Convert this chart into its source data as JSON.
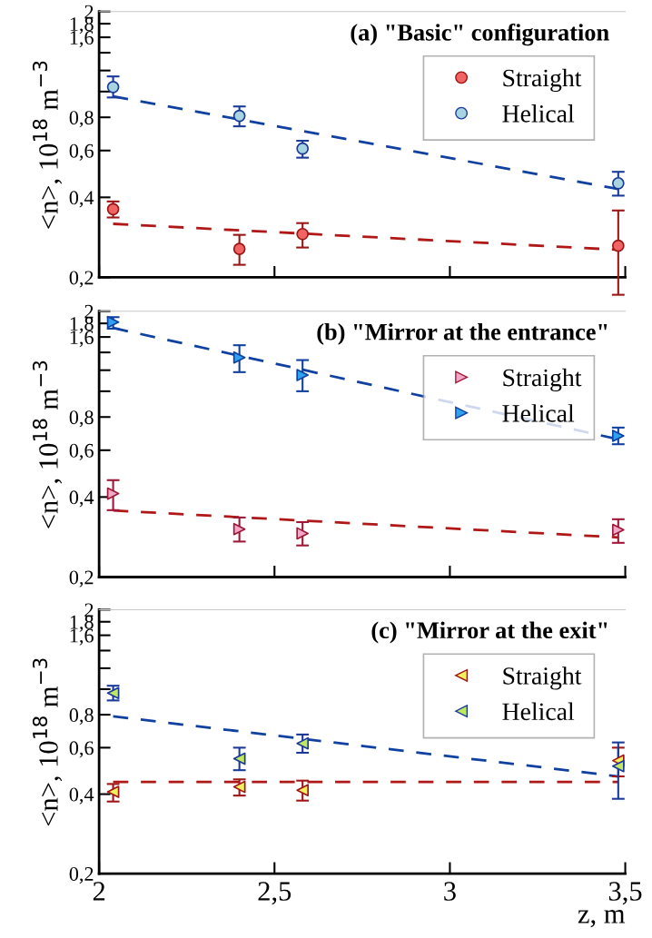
{
  "chart_data": [
    {
      "type": "scatter",
      "title": "(a) \"Basic\" configuration",
      "ylabel": "<n>, 10$^{18}$ m$^{−3}$",
      "log": "y",
      "xlim": [
        2,
        3.5
      ],
      "ylim": [
        0.2,
        2
      ],
      "xticks": [
        {
          "value": 2,
          "label": null
        },
        {
          "value": 2.5,
          "label": null
        },
        {
          "value": 3,
          "label": null
        },
        {
          "value": 3.5,
          "label": null
        }
      ],
      "yticks": [
        {
          "value": 0.2,
          "label": "0,2"
        },
        {
          "value": 0.4,
          "label": "0,4"
        },
        {
          "value": 0.6,
          "label": "0,6"
        },
        {
          "value": 0.8,
          "label": "0,8"
        },
        {
          "value": 1.0,
          "label": null
        },
        {
          "value": 1.2,
          "label": null
        },
        {
          "value": 1.4,
          "label": null
        },
        {
          "value": 1.6,
          "label": "1,6"
        },
        {
          "value": 1.8,
          "label": "1,8"
        },
        2
      ],
      "tick_labels": "y",
      "legend": "top right",
      "grid": false,
      "marker": "circle",
      "series": [
        {
          "name": "Straight",
          "color": "#9a1515",
          "colors": [
            "#f06464",
            "#f06464",
            "#f06464",
            "#f06464"
          ],
          "x": [
            2.04,
            2.4,
            2.58,
            3.48
          ],
          "values": [
            0.361,
            0.256,
            0.291,
            0.263
          ],
          "errors": [
            [
              0.336,
              0.386
            ],
            [
              0.223,
              0.289
            ],
            [
              0.259,
              0.32
            ],
            [
              0.172,
              0.357
            ]
          ]
        },
        {
          "name": "Helical",
          "color": "#1a3a9a",
          "colors": [
            "#a8d4e0",
            "#a8d4e0",
            "#a8d4e0",
            "#a8d4e0"
          ],
          "x": [
            2.04,
            2.4,
            2.58,
            3.48
          ],
          "values": [
            1.04,
            0.81,
            0.61,
            0.452
          ],
          "errors": [
            [
              0.95,
              1.14
            ],
            [
              0.74,
              0.879
            ],
            [
              0.564,
              0.653
            ],
            [
              0.406,
              0.499
            ]
          ]
        },
        {
          "type": "line",
          "line_style": "dashed",
          "marker": "none",
          "color": "#b01818",
          "x": [
            2.04,
            3.48
          ],
          "values": [
            0.318,
            0.254
          ]
        },
        {
          "type": "line",
          "line_style": "dashed",
          "marker": "none",
          "color": "#1040a0",
          "x": [
            2.04,
            3.48
          ],
          "values": [
            0.96,
            0.43
          ]
        }
      ]
    },
    {
      "type": "scatter",
      "title": "(b) \"Mirror at the entrance\"",
      "ylabel": "<n>, 10$^{18}$ m$^{−3}$",
      "log": "y",
      "xlim": [
        2,
        3.5
      ],
      "ylim": [
        0.2,
        2
      ],
      "xticks": [
        {
          "value": 2,
          "label": null
        },
        {
          "value": 2.5,
          "label": null
        },
        {
          "value": 3,
          "label": null
        },
        {
          "value": 3.5,
          "label": null
        }
      ],
      "yticks": [
        {
          "value": 0.2,
          "label": "0,2"
        },
        {
          "value": 0.4,
          "label": "0,4"
        },
        {
          "value": 0.6,
          "label": "0,6"
        },
        {
          "value": 0.8,
          "label": "0,8"
        },
        {
          "value": 1.0,
          "label": null
        },
        {
          "value": 1.2,
          "label": null
        },
        {
          "value": 1.4,
          "label": null
        },
        {
          "value": 1.6,
          "label": "1,6"
        },
        {
          "value": 1.8,
          "label": "1,8"
        },
        2
      ],
      "tick_labels": "y",
      "legend": "top right",
      "grid": false,
      "marker": "triangle-right",
      "series": [
        {
          "name": "Straight",
          "color": "#a01838",
          "colors": [
            "#f4a8c8",
            "#f4a8c8",
            "#f4a8c8",
            "#f4a8c8"
          ],
          "x": [
            2.04,
            2.4,
            2.58,
            3.48
          ],
          "values": [
            0.412,
            0.303,
            0.292,
            0.301
          ],
          "errors": [
            [
              0.357,
              0.463
            ],
            [
              0.272,
              0.335
            ],
            [
              0.263,
              0.322
            ],
            [
              0.269,
              0.33
            ]
          ]
        },
        {
          "name": "Helical",
          "color": "#1040a0",
          "colors": [
            "#30a0f0",
            "#30a0f0",
            "#30a0f0",
            "#30a0f0"
          ],
          "x": [
            2.04,
            2.4,
            2.58,
            3.48
          ],
          "values": [
            1.82,
            1.34,
            1.15,
            0.68
          ],
          "errors": [
            [
              1.72,
              1.9
            ],
            [
              1.18,
              1.49
            ],
            [
              1.0,
              1.31
            ],
            [
              0.632,
              0.73
            ]
          ]
        },
        {
          "type": "line",
          "line_style": "dashed",
          "marker": "none",
          "color": "#b01818",
          "x": [
            2.04,
            3.48
          ],
          "values": [
            0.356,
            0.282
          ]
        },
        {
          "type": "line",
          "line_style": "dashed",
          "marker": "none",
          "color": "#1040a0",
          "x": [
            2.04,
            3.48
          ],
          "values": [
            1.73,
            0.66
          ]
        }
      ]
    },
    {
      "type": "scatter",
      "title": "(c) \"Mirror at the exit\"",
      "xlabel": "z, m",
      "ylabel": "<n>, 10$^{18}$ m$^{−3}$",
      "log": "y",
      "xlim": [
        2,
        3.5
      ],
      "ylim": [
        0.2,
        2
      ],
      "xticks": [
        2,
        {
          "value": 2.5,
          "label": "2,5"
        },
        3,
        {
          "value": 3.5,
          "label": "3,5"
        }
      ],
      "yticks": [
        {
          "value": 0.2,
          "label": "0,2"
        },
        {
          "value": 0.4,
          "label": "0,4"
        },
        {
          "value": 0.6,
          "label": "0,6"
        },
        {
          "value": 0.8,
          "label": "0,8"
        },
        {
          "value": 1.0,
          "label": null
        },
        {
          "value": 1.2,
          "label": null
        },
        {
          "value": 1.4,
          "label": null
        },
        {
          "value": 1.6,
          "label": "1,6"
        },
        {
          "value": 1.8,
          "label": "1,8"
        },
        2
      ],
      "legend": "top right",
      "grid": false,
      "marker": "triangle-left",
      "series": [
        {
          "name": "Straight",
          "color": "#a01515",
          "colors": [
            "#f0f060",
            "#f0f060",
            "#f0f060",
            "#f0f060"
          ],
          "x": [
            2.04,
            2.4,
            2.58,
            3.48
          ],
          "values": [
            0.408,
            0.426,
            0.414,
            0.536
          ],
          "errors": [
            [
              0.375,
              0.437
            ],
            [
              0.395,
              0.455
            ],
            [
              0.378,
              0.45
            ],
            [
              0.467,
              0.6
            ]
          ]
        },
        {
          "name": "Helical",
          "color": "#1a3a9a",
          "colors": [
            "#c0e860",
            "#c0e860",
            "#c0e860",
            "#c0e860"
          ],
          "x": [
            2.04,
            2.4,
            2.58,
            3.48
          ],
          "values": [
            0.966,
            0.545,
            0.623,
            0.511
          ],
          "errors": [
            [
              0.906,
              1.03
            ],
            [
              0.493,
              0.6
            ],
            [
              0.574,
              0.673
            ],
            [
              0.384,
              0.628
            ]
          ]
        },
        {
          "type": "line",
          "line_style": "dashed",
          "marker": "none",
          "color": "#b01818",
          "x": [
            2.04,
            3.48
          ],
          "values": [
            0.445,
            0.445
          ]
        },
        {
          "type": "line",
          "line_style": "dashed",
          "marker": "none",
          "color": "#1040a0",
          "x": [
            2.04,
            3.48
          ],
          "values": [
            0.789,
            0.467
          ]
        }
      ]
    }
  ]
}
